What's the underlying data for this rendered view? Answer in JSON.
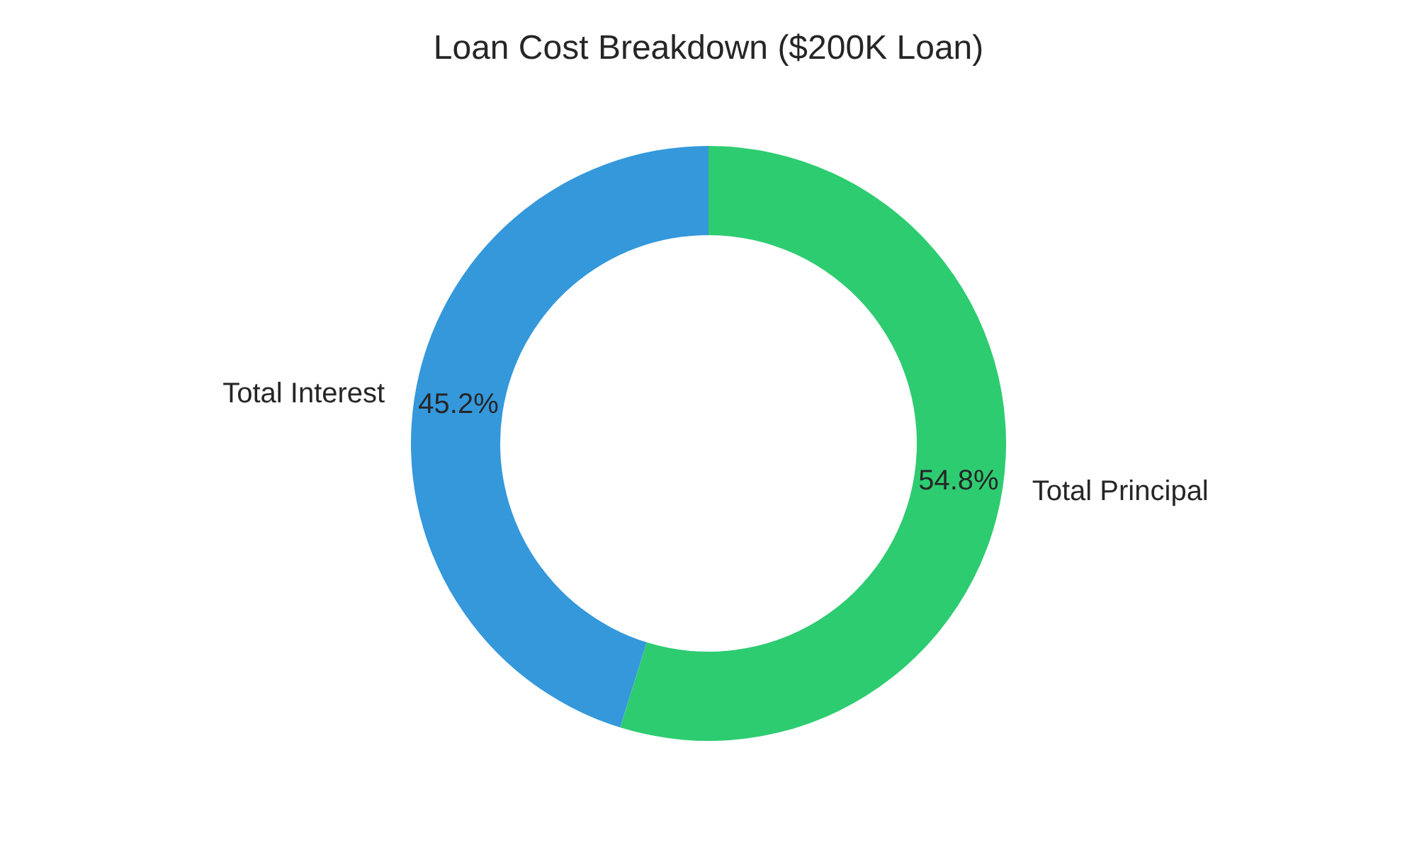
{
  "chart_data": {
    "type": "donut",
    "title": "Loan Cost Breakdown ($200K Loan)",
    "categories": [
      "Total Principal",
      "Total Interest"
    ],
    "values": [
      54.8,
      45.2
    ],
    "colors": [
      "#2ecc71",
      "#3498db"
    ],
    "value_labels": [
      "54.8%",
      "45.2%"
    ]
  }
}
